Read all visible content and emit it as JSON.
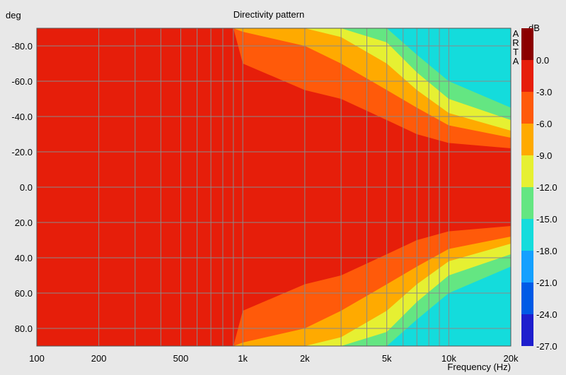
{
  "chart_data": {
    "type": "heatmap",
    "title": "Directivity pattern",
    "xlabel": "Frequency (Hz)",
    "ylabel": "deg",
    "x_scale": "log",
    "xlim": [
      100,
      20000
    ],
    "ylim": [
      -90,
      90
    ],
    "x_ticks": [
      100,
      200,
      500,
      1000,
      2000,
      5000,
      10000,
      20000
    ],
    "x_tick_labels": [
      "100",
      "200",
      "500",
      "1k",
      "2k",
      "5k",
      "10k",
      "20k"
    ],
    "y_ticks": [
      -80,
      -60,
      -40,
      -20,
      0,
      20,
      40,
      60,
      80
    ],
    "y_tick_labels": [
      "-80.0",
      "-60.0",
      "-40.0",
      "-20.0",
      "0.0",
      "20.0",
      "40.0",
      "60.0",
      "80.0"
    ],
    "grid": true,
    "colorbar": {
      "unit": "dB",
      "levels": [
        3.0,
        0.0,
        -3.0,
        -6.0,
        -9.0,
        -12.0,
        -15.0,
        -18.0,
        -21.0,
        -24.0,
        -27.0
      ],
      "labels": [
        "0.0",
        "-3.0",
        "-6.0",
        "-9.0",
        "-12.0",
        "-15.0",
        "-18.0",
        "-21.0",
        "-24.0",
        "-27.0"
      ],
      "colors": [
        "#8b0000",
        "#e61e0a",
        "#ff5a0a",
        "#ffaa00",
        "#e6f032",
        "#64e682",
        "#14dcdc",
        "#14a0ff",
        "#005ae6",
        "#1e1ecd"
      ]
    },
    "beamwidth_profile": {
      "frequency_hz": [
        100,
        200,
        500,
        900,
        1000,
        2000,
        3000,
        5000,
        7000,
        10000,
        20000
      ],
      "minus3db_angle_deg": [
        90,
        90,
        90,
        90,
        70,
        55,
        50,
        38,
        30,
        25,
        22
      ],
      "minus6db_angle_deg": [
        90,
        90,
        90,
        90,
        88,
        80,
        70,
        55,
        45,
        35,
        28
      ],
      "minus9db_angle_deg": [
        90,
        90,
        90,
        90,
        90,
        90,
        85,
        70,
        55,
        42,
        32
      ],
      "minus12db_angle_deg": [
        90,
        90,
        90,
        90,
        90,
        90,
        90,
        82,
        65,
        50,
        38
      ],
      "minus15db_angle_deg": [
        90,
        90,
        90,
        90,
        90,
        90,
        90,
        90,
        75,
        60,
        45
      ]
    },
    "brand_text": "ARTA"
  },
  "legend_title": "dB"
}
